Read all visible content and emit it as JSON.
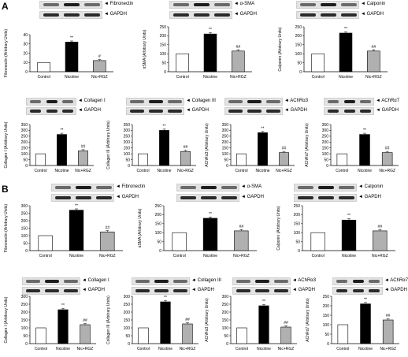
{
  "panels": [
    {
      "label": "A",
      "blot_labels": [
        "Fibronectin",
        "GAPDH",
        "α-SMA",
        "GAPDH",
        "Calponin",
        "GAPDH",
        "Collagen I",
        "GAPDH",
        "Collagen III",
        "GAPDH",
        "AChRα3",
        "GAPDH",
        "AChRα7",
        "GAPDH"
      ]
    },
    {
      "label": "B",
      "blot_labels": [
        "Fibronectin",
        "GAPDH",
        "α-SMA",
        "GAPDH",
        "Calponin",
        "GAPDH",
        "Collagen I",
        "GAPDH",
        "Collagen III",
        "GAPDH",
        "AChRα3",
        "GAPDH",
        "AChRα7",
        "GAPDH"
      ]
    }
  ],
  "chart_data": [
    {
      "type": "bar",
      "panel": "A",
      "categories": [
        "Control",
        "Nicotine",
        "Nic+RGZ"
      ],
      "values": [
        10,
        32,
        12
      ],
      "ylim": [
        0,
        40
      ],
      "yticks": [
        0,
        10,
        20,
        30,
        40
      ],
      "ylabel": "Fibronectin (Arbitrary Units)",
      "annotations": [
        "",
        "**",
        "#"
      ],
      "colors": [
        "#ffffff",
        "#000000",
        "#b0b0b0"
      ]
    },
    {
      "type": "bar",
      "panel": "A",
      "categories": [
        "Control",
        "Nicotine",
        "Nic+RGZ"
      ],
      "values": [
        100,
        210,
        115
      ],
      "ylim": [
        0,
        250
      ],
      "yticks": [
        0,
        50,
        100,
        150,
        200,
        250
      ],
      "ylabel": "αSMA (Arbitrary Units)",
      "annotations": [
        "",
        "**",
        "##"
      ],
      "colors": [
        "#ffffff",
        "#000000",
        "#b0b0b0"
      ]
    },
    {
      "type": "bar",
      "panel": "A",
      "categories": [
        "Control",
        "Nicotine",
        "Nic+RGZ"
      ],
      "values": [
        100,
        215,
        115
      ],
      "ylim": [
        0,
        250
      ],
      "yticks": [
        0,
        50,
        100,
        150,
        200,
        250
      ],
      "ylabel": "Calponin (Arbitrary Units)",
      "annotations": [
        "",
        "**",
        "##"
      ],
      "colors": [
        "#ffffff",
        "#000000",
        "#b0b0b0"
      ]
    },
    {
      "type": "bar",
      "panel": "A",
      "categories": [
        "Control",
        "Nicotine",
        "Nic+RGZ"
      ],
      "values": [
        100,
        265,
        125
      ],
      "ylim": [
        0,
        350
      ],
      "yticks": [
        0,
        50,
        100,
        150,
        200,
        250,
        300,
        350
      ],
      "ylabel": "Collagen I (Arbitrary Units)",
      "annotations": [
        "",
        "**",
        "##"
      ],
      "colors": [
        "#ffffff",
        "#000000",
        "#b0b0b0"
      ]
    },
    {
      "type": "bar",
      "panel": "A",
      "categories": [
        "Control",
        "Nicotine",
        "Nic+RGZ"
      ],
      "values": [
        100,
        300,
        120
      ],
      "ylim": [
        0,
        350
      ],
      "yticks": [
        0,
        50,
        100,
        150,
        200,
        250,
        300,
        350
      ],
      "ylabel": "Collagen III (Arbitrary Units)",
      "annotations": [
        "",
        "**",
        "##"
      ],
      "colors": [
        "#ffffff",
        "#000000",
        "#b0b0b0"
      ]
    },
    {
      "type": "bar",
      "panel": "A",
      "categories": [
        "Control",
        "Nicotine",
        "Nic+RGZ"
      ],
      "values": [
        100,
        280,
        110
      ],
      "ylim": [
        0,
        350
      ],
      "yticks": [
        0,
        50,
        100,
        150,
        200,
        250,
        300,
        350
      ],
      "ylabel": "AChRα3 (Arbitrary Units)",
      "annotations": [
        "",
        "**",
        "##"
      ],
      "colors": [
        "#ffffff",
        "#000000",
        "#b0b0b0"
      ]
    },
    {
      "type": "bar",
      "panel": "A",
      "categories": [
        "Control",
        "Nicotine",
        "Nic+RGZ"
      ],
      "values": [
        100,
        265,
        110
      ],
      "ylim": [
        0,
        350
      ],
      "yticks": [
        0,
        50,
        100,
        150,
        200,
        250,
        300,
        350
      ],
      "ylabel": "AChRα7 (Arbitrary Units)",
      "annotations": [
        "",
        "**",
        "##"
      ],
      "colors": [
        "#ffffff",
        "#000000",
        "#b0b0b0"
      ]
    },
    {
      "type": "bar",
      "panel": "B",
      "categories": [
        "Control",
        "Nicotine",
        "Nic+RGZ"
      ],
      "values": [
        100,
        270,
        125
      ],
      "ylim": [
        0,
        300
      ],
      "yticks": [
        0,
        50,
        100,
        150,
        200,
        250,
        300
      ],
      "ylabel": "Fibronectin (Arbitrary Units)",
      "annotations": [
        "",
        "**",
        "##"
      ],
      "colors": [
        "#ffffff",
        "#000000",
        "#b0b0b0"
      ]
    },
    {
      "type": "bar",
      "panel": "B",
      "categories": [
        "Control",
        "Nicotine",
        "Nic+RGZ"
      ],
      "values": [
        100,
        180,
        110
      ],
      "ylim": [
        0,
        250
      ],
      "yticks": [
        0,
        50,
        100,
        150,
        200,
        250
      ],
      "ylabel": "αSMA (Arbitrary Units)",
      "annotations": [
        "",
        "**",
        "##"
      ],
      "colors": [
        "#ffffff",
        "#000000",
        "#b0b0b0"
      ]
    },
    {
      "type": "bar",
      "panel": "B",
      "categories": [
        "Control",
        "Nicotine",
        "Nic+RGZ"
      ],
      "values": [
        100,
        170,
        110
      ],
      "ylim": [
        0,
        250
      ],
      "yticks": [
        0,
        50,
        100,
        150,
        200,
        250
      ],
      "ylabel": "Calponin (Arbitrary Units)",
      "annotations": [
        "",
        "**",
        "##"
      ],
      "colors": [
        "#ffffff",
        "#000000",
        "#b0b0b0"
      ]
    },
    {
      "type": "bar",
      "panel": "B",
      "categories": [
        "Control",
        "Nicotine",
        "Nic+RGZ"
      ],
      "values": [
        100,
        215,
        120
      ],
      "ylim": [
        0,
        300
      ],
      "yticks": [
        0,
        50,
        100,
        150,
        200,
        250,
        300
      ],
      "ylabel": "Collagen I (Arbitrary Units)",
      "annotations": [
        "",
        "**",
        "##"
      ],
      "colors": [
        "#ffffff",
        "#000000",
        "#b0b0b0"
      ]
    },
    {
      "type": "bar",
      "panel": "B",
      "categories": [
        "Control",
        "Nicotine",
        "Nic+RGZ"
      ],
      "values": [
        100,
        265,
        125
      ],
      "ylim": [
        0,
        300
      ],
      "yticks": [
        0,
        50,
        100,
        150,
        200,
        250,
        300
      ],
      "ylabel": "Collagen III (Arbitrary Units)",
      "annotations": [
        "",
        "**",
        "##"
      ],
      "colors": [
        "#ffffff",
        "#000000",
        "#b0b0b0"
      ]
    },
    {
      "type": "bar",
      "panel": "B",
      "categories": [
        "Control",
        "Nicotine",
        "Nic+RGZ"
      ],
      "values": [
        100,
        240,
        105
      ],
      "ylim": [
        0,
        300
      ],
      "yticks": [
        0,
        50,
        100,
        150,
        200,
        250,
        300
      ],
      "ylabel": "AChRα3 (Arbitrary Units)",
      "annotations": [
        "",
        "**",
        "##"
      ],
      "colors": [
        "#ffffff",
        "#000000",
        "#b0b0b0"
      ]
    },
    {
      "type": "bar",
      "panel": "B",
      "categories": [
        "Control",
        "Nicotine",
        "Nic+RGZ"
      ],
      "values": [
        100,
        210,
        125
      ],
      "ylim": [
        0,
        250
      ],
      "yticks": [
        0,
        50,
        100,
        150,
        200,
        250
      ],
      "ylabel": "AChRα7 (Arbitrary Units)",
      "annotations": [
        "",
        "**",
        "##"
      ],
      "colors": [
        "#ffffff",
        "#000000",
        "#b0b0b0"
      ]
    }
  ]
}
